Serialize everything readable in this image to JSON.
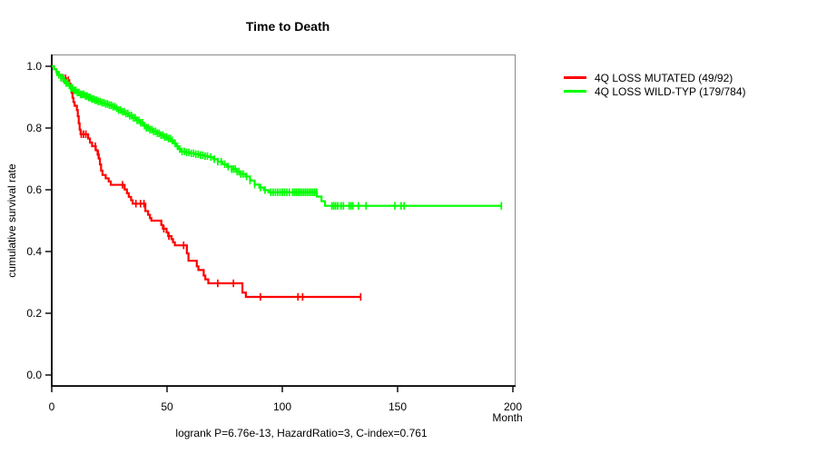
{
  "chart_data": {
    "type": "line",
    "subtype": "kaplan-meier-step",
    "title": "Time to Death",
    "xlabel": "Month",
    "ylabel": "cumulative survival rate",
    "footer": "logrank P=6.76e-13, HazardRatio=3, C-index=0.761",
    "xlim": [
      0,
      200
    ],
    "ylim": [
      0.0,
      1.0
    ],
    "x_ticks": [
      0,
      50,
      100,
      150,
      200
    ],
    "y_ticks": [
      "0.0",
      "0.2",
      "0.4",
      "0.6",
      "0.8",
      "1.0"
    ],
    "y_tick_values": [
      0.0,
      0.2,
      0.4,
      0.6,
      0.8,
      1.0
    ],
    "grid": false,
    "legend_position": "right-outside",
    "series": [
      {
        "name": "4Q LOSS MUTATED (49/92)",
        "color": "#ff0000",
        "end_month": 134,
        "points": [
          [
            0,
            1.0
          ],
          [
            1,
            0.99
          ],
          [
            2,
            0.981
          ],
          [
            3,
            0.972
          ],
          [
            4.5,
            0.961
          ],
          [
            6.2,
            0.955
          ],
          [
            7.6,
            0.944
          ],
          [
            8.1,
            0.93
          ],
          [
            8.6,
            0.914
          ],
          [
            9.0,
            0.898
          ],
          [
            9.4,
            0.884
          ],
          [
            9.9,
            0.872
          ],
          [
            10.9,
            0.858
          ],
          [
            11.3,
            0.838
          ],
          [
            11.7,
            0.815
          ],
          [
            12.1,
            0.795
          ],
          [
            12.5,
            0.78
          ],
          [
            15.8,
            0.766
          ],
          [
            16.6,
            0.753
          ],
          [
            17.5,
            0.741
          ],
          [
            19.1,
            0.728
          ],
          [
            19.9,
            0.714
          ],
          [
            20.4,
            0.701
          ],
          [
            20.9,
            0.682
          ],
          [
            21.4,
            0.662
          ],
          [
            22.0,
            0.648
          ],
          [
            23.4,
            0.637
          ],
          [
            24.7,
            0.627
          ],
          [
            25.6,
            0.616
          ],
          [
            31.6,
            0.601
          ],
          [
            32.6,
            0.589
          ],
          [
            33.4,
            0.577
          ],
          [
            34.4,
            0.566
          ],
          [
            35.1,
            0.555
          ],
          [
            40.6,
            0.531
          ],
          [
            41.8,
            0.519
          ],
          [
            42.6,
            0.508
          ],
          [
            43.2,
            0.5
          ],
          [
            47.5,
            0.486
          ],
          [
            48.2,
            0.474
          ],
          [
            49.8,
            0.462
          ],
          [
            50.5,
            0.45
          ],
          [
            51.9,
            0.44
          ],
          [
            52.6,
            0.43
          ],
          [
            53.4,
            0.42
          ],
          [
            58.6,
            0.394
          ],
          [
            59.3,
            0.37
          ],
          [
            62.9,
            0.352
          ],
          [
            63.6,
            0.34
          ],
          [
            65.9,
            0.322
          ],
          [
            66.6,
            0.31
          ],
          [
            67.9,
            0.297
          ],
          [
            82.7,
            0.267
          ],
          [
            84.2,
            0.253
          ]
        ],
        "censor_months": [
          5,
          6,
          7.2,
          12.8,
          13.8,
          14.8,
          18.9,
          20.2,
          30.7,
          36.5,
          38.5,
          40,
          48.6,
          50.8,
          57.2,
          72,
          78.8,
          90.5,
          106.8,
          108.8,
          134
        ]
      },
      {
        "name": "4Q LOSS WILD-TYP (179/784)",
        "color": "#00ff00",
        "end_month": 195,
        "points": [
          [
            0,
            1.0
          ],
          [
            1,
            0.99
          ],
          [
            2,
            0.981
          ],
          [
            3,
            0.972
          ],
          [
            4,
            0.963
          ],
          [
            5,
            0.954
          ],
          [
            6,
            0.946
          ],
          [
            7,
            0.938
          ],
          [
            8,
            0.93
          ],
          [
            9.5,
            0.922
          ],
          [
            11,
            0.915
          ],
          [
            12.5,
            0.909
          ],
          [
            14,
            0.904
          ],
          [
            15.5,
            0.899
          ],
          [
            17,
            0.894
          ],
          [
            18.5,
            0.89
          ],
          [
            20,
            0.886
          ],
          [
            21.5,
            0.882
          ],
          [
            23,
            0.878
          ],
          [
            24.5,
            0.874
          ],
          [
            26,
            0.869
          ],
          [
            27.5,
            0.864
          ],
          [
            29,
            0.858
          ],
          [
            30.5,
            0.853
          ],
          [
            32,
            0.847
          ],
          [
            33.5,
            0.84
          ],
          [
            35,
            0.833
          ],
          [
            36.5,
            0.825
          ],
          [
            38,
            0.817
          ],
          [
            39.5,
            0.808
          ],
          [
            41,
            0.801
          ],
          [
            42.5,
            0.795
          ],
          [
            44,
            0.789
          ],
          [
            45.5,
            0.783
          ],
          [
            47,
            0.777
          ],
          [
            48.5,
            0.771
          ],
          [
            50,
            0.766
          ],
          [
            51.5,
            0.76
          ],
          [
            53,
            0.75
          ],
          [
            54,
            0.741
          ],
          [
            55,
            0.732
          ],
          [
            56,
            0.724
          ],
          [
            58,
            0.721
          ],
          [
            60,
            0.718
          ],
          [
            62,
            0.715
          ],
          [
            64,
            0.712
          ],
          [
            66,
            0.709
          ],
          [
            68,
            0.706
          ],
          [
            70,
            0.699
          ],
          [
            72,
            0.691
          ],
          [
            74,
            0.683
          ],
          [
            76,
            0.675
          ],
          [
            78,
            0.667
          ],
          [
            80,
            0.659
          ],
          [
            82,
            0.651
          ],
          [
            84,
            0.643
          ],
          [
            86,
            0.63
          ],
          [
            88,
            0.617
          ],
          [
            90,
            0.607
          ],
          [
            92,
            0.599
          ],
          [
            94,
            0.592
          ],
          [
            115,
            0.578
          ],
          [
            117,
            0.563
          ],
          [
            118.5,
            0.548
          ]
        ],
        "censor_months": [
          2.2,
          3.1,
          4,
          4.8,
          5.5,
          6.2,
          6.9,
          7.6,
          8.3,
          9,
          9.7,
          10.4,
          11.1,
          11.8,
          12.5,
          13.2,
          13.9,
          14.6,
          15.3,
          16,
          16.7,
          17.4,
          18.1,
          18.8,
          19.5,
          20.2,
          21,
          21.8,
          22.6,
          23.4,
          24.2,
          25,
          25.8,
          26.6,
          27.4,
          28.2,
          29,
          29.8,
          30.6,
          31.4,
          32.2,
          33,
          33.8,
          34.6,
          35.4,
          36.2,
          37,
          37.8,
          38.6,
          39.4,
          40.2,
          41,
          41.8,
          42.6,
          43.4,
          44.2,
          45,
          45.8,
          46.6,
          47.4,
          48.2,
          49,
          49.8,
          50.6,
          51.4,
          52.2,
          53.5,
          54.5,
          55.5,
          56.5,
          57.5,
          58.5,
          59.5,
          60.5,
          61.5,
          62.5,
          63.5,
          64.5,
          65.5,
          66.5,
          67.5,
          69,
          70.5,
          72,
          73.5,
          75,
          76.5,
          78,
          78.8,
          79.6,
          80.4,
          81.2,
          82,
          83,
          84.5,
          86,
          88,
          90.5,
          92.5,
          95,
          96,
          97,
          98,
          99,
          100,
          101,
          102,
          103,
          104.5,
          105.3,
          106.1,
          106.9,
          107.7,
          108.5,
          109.3,
          110.1,
          110.9,
          111.7,
          112.5,
          113.3,
          114.1,
          114.9,
          121.5,
          122.3,
          123.1,
          124,
          125.5,
          126.5,
          129,
          129.8,
          130.6,
          133,
          136.3,
          148.8,
          151.5,
          152.8,
          195
        ]
      }
    ]
  }
}
